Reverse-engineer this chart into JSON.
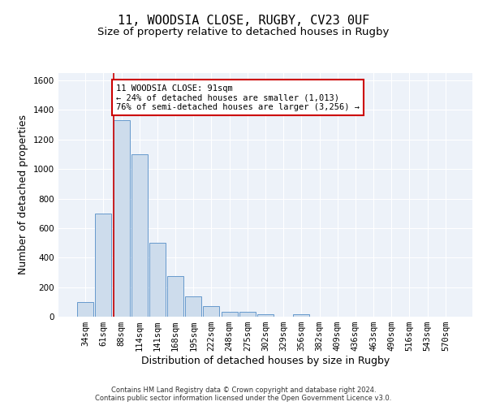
{
  "title_line1": "11, WOODSIA CLOSE, RUGBY, CV23 0UF",
  "title_line2": "Size of property relative to detached houses in Rugby",
  "xlabel": "Distribution of detached houses by size in Rugby",
  "ylabel": "Number of detached properties",
  "bar_labels": [
    "34sqm",
    "61sqm",
    "88sqm",
    "114sqm",
    "141sqm",
    "168sqm",
    "195sqm",
    "222sqm",
    "248sqm",
    "275sqm",
    "302sqm",
    "329sqm",
    "356sqm",
    "382sqm",
    "409sqm",
    "436sqm",
    "463sqm",
    "490sqm",
    "516sqm",
    "543sqm",
    "570sqm"
  ],
  "bar_values": [
    100,
    700,
    1330,
    1100,
    500,
    275,
    135,
    70,
    35,
    35,
    15,
    0,
    15,
    0,
    0,
    0,
    0,
    0,
    0,
    0,
    0
  ],
  "bar_color": "#cddcec",
  "bar_edge_color": "#6699cc",
  "highlight_bar_index": 2,
  "highlight_line_color": "#cc0000",
  "ylim": [
    0,
    1650
  ],
  "yticks": [
    0,
    200,
    400,
    600,
    800,
    1000,
    1200,
    1400,
    1600
  ],
  "annotation_text": "11 WOODSIA CLOSE: 91sqm\n← 24% of detached houses are smaller (1,013)\n76% of semi-detached houses are larger (3,256) →",
  "annotation_box_color": "#ffffff",
  "annotation_box_edge": "#cc0000",
  "background_color": "#edf2f9",
  "grid_color": "#ffffff",
  "footer_text": "Contains HM Land Registry data © Crown copyright and database right 2024.\nContains public sector information licensed under the Open Government Licence v3.0.",
  "title_fontsize": 11,
  "subtitle_fontsize": 9.5,
  "tick_fontsize": 7.5,
  "xlabel_fontsize": 9,
  "ylabel_fontsize": 9,
  "annotation_fontsize": 7.5,
  "footer_fontsize": 6
}
